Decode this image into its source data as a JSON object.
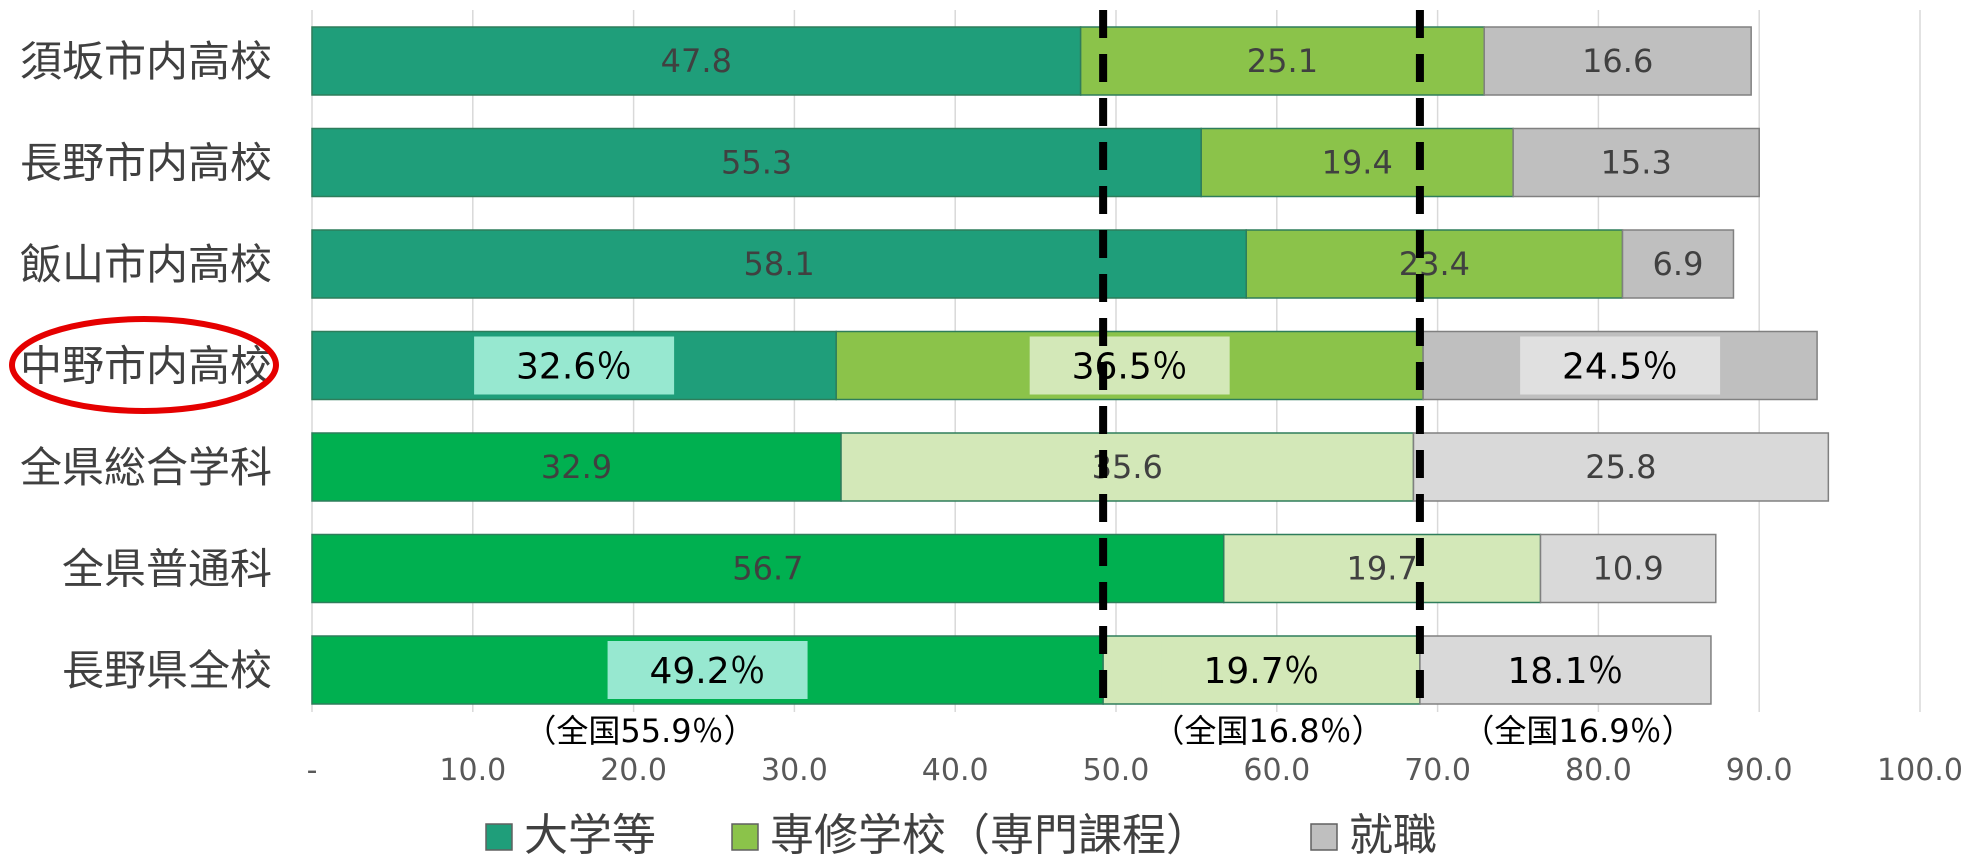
{
  "chart_data": {
    "type": "bar",
    "orientation": "horizontal",
    "stacked": true,
    "categories": [
      "須坂市内高校",
      "長野市内高校",
      "飯山市内高校",
      "中野市内高校",
      "全県総合学科",
      "全県普通科",
      "長野県全校"
    ],
    "series": [
      {
        "name": "大学等",
        "values": [
          47.8,
          55.3,
          58.1,
          32.6,
          32.9,
          56.7,
          49.2
        ],
        "color": "#1f9e7a"
      },
      {
        "name": "専修学校（専門課程）",
        "values": [
          25.1,
          19.4,
          23.4,
          36.5,
          35.6,
          19.7,
          19.7
        ],
        "color": "#8bc34a"
      },
      {
        "name": "就職",
        "values": [
          16.6,
          15.3,
          6.9,
          24.5,
          25.8,
          10.9,
          18.1
        ],
        "color": "#bfbfbf"
      }
    ],
    "data_labels": [
      [
        "47.8",
        "25.1",
        "16.6"
      ],
      [
        "55.3",
        "19.4",
        "15.3"
      ],
      [
        "58.1",
        "23.4",
        "6.9"
      ],
      [
        "32.6％",
        "36.5％",
        "24.5％"
      ],
      [
        "32.9",
        "35.6",
        "25.8"
      ],
      [
        "56.7",
        "19.7",
        "10.9"
      ],
      [
        "49.2％",
        "19.7％",
        "18.1％"
      ]
    ],
    "row_colors": [
      [
        "#1f9e7a",
        "#8bc34a",
        "#bfbfbf"
      ],
      [
        "#1f9e7a",
        "#8bc34a",
        "#bfbfbf"
      ],
      [
        "#1f9e7a",
        "#8bc34a",
        "#bfbfbf"
      ],
      [
        "#1f9e7a",
        "#8bc34a",
        "#bfbfbf"
      ],
      [
        "#00b050",
        "#d3e8b8",
        "#d9d9d9"
      ],
      [
        "#00b050",
        "#d3e8b8",
        "#d9d9d9"
      ],
      [
        "#00b050",
        "#d3e8b8",
        "#d9d9d9"
      ]
    ],
    "highlighted_rows": [
      3,
      6
    ],
    "highlighted_category": 3,
    "xlim": [
      0,
      100
    ],
    "xticks": [
      0,
      10,
      20,
      30,
      40,
      50,
      60,
      70,
      80,
      90,
      100
    ],
    "xtick_labels": [
      "-",
      "10.0",
      "20.0",
      "30.0",
      "40.0",
      "50.0",
      "60.0",
      "70.0",
      "80.0",
      "90.0",
      "100.0"
    ],
    "grid": true,
    "legend_position": "bottom",
    "reference_lines": [
      49.2,
      68.9
    ],
    "annotations": [
      "（全国55.9％）",
      "（全国16.8％）",
      "（全国16.9％）"
    ]
  }
}
